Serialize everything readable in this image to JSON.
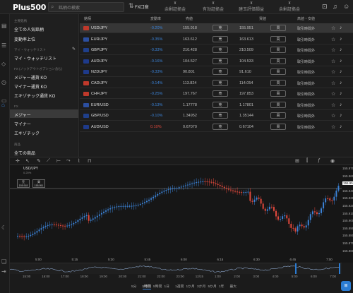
{
  "header": {
    "logo": "Plus500",
    "search_placeholder": "銘柄の検索",
    "account_label": "FX口座",
    "stats": [
      {
        "label": "余剰証拠金",
        "value": "¥"
      },
      {
        "label": "有効証拠金",
        "value": "¥"
      },
      {
        "label": "建玉評価損益",
        "value": "¥"
      },
      {
        "label": "余剰証拠金",
        "value": "¥"
      }
    ]
  },
  "sidebar": {
    "head1": "主要銘柄",
    "item_all_popular": "全ての人気銘柄",
    "item_top_movers": "変動率上位",
    "head2": "マイ・ウォッチリスト",
    "item_watchlist": "マイ・ウォッチリスト",
    "head3": "FX (ノックアウトオプション含む)",
    "item_major_ko": "メジャー通貨 KO",
    "item_minor_ko": "マイナー通貨 KO",
    "item_exotic_ko": "エキゾチック通貨 KO",
    "head4": "FX",
    "item_major": "メジャー",
    "item_minor": "マイナー",
    "item_exotic": "エキゾチック",
    "head5": "商品",
    "item_all_products": "全ての商品"
  },
  "table": {
    "headers": {
      "symbol": "銘柄",
      "change": "変動率",
      "sell": "売値",
      "buy": "買値",
      "status": "高値・安値"
    },
    "sell_label": "売",
    "buy_label": "買",
    "rows": [
      {
        "symbol": "USD/JPY",
        "change": "-0.20%",
        "sell": "155.918",
        "buy": "155.951",
        "status": "取引時間外",
        "neg": false,
        "flag": "#c0392b"
      },
      {
        "symbol": "EUR/JPY",
        "change": "-0.35%",
        "sell": "163.612",
        "buy": "163.613",
        "status": "取引時間外",
        "neg": false,
        "flag": "#2c4fa0"
      },
      {
        "symbol": "GBP/JPY",
        "change": "-0.33%",
        "sell": "210.428",
        "buy": "210.509",
        "status": "取引時間外",
        "neg": false,
        "flag": "#1f3f8a"
      },
      {
        "symbol": "AUD/JPY",
        "change": "-0.16%",
        "sell": "104.527",
        "buy": "104.533",
        "status": "取引時間外",
        "neg": false,
        "flag": "#1e3a8a"
      },
      {
        "symbol": "NZD/JPY",
        "change": "-0.33%",
        "sell": "90.801",
        "buy": "91.610",
        "status": "取引時間外",
        "neg": false,
        "flag": "#1e3a8a"
      },
      {
        "symbol": "CAD/JPY",
        "change": "-0.14%",
        "sell": "113.824",
        "buy": "114.054",
        "status": "取引時間外",
        "neg": false,
        "flag": "#c0392b"
      },
      {
        "symbol": "CHF/JPY",
        "change": "-0.25%",
        "sell": "197.767",
        "buy": "197.853",
        "status": "取引時間外",
        "neg": false,
        "flag": "#c0392b"
      },
      {
        "symbol": "EUR/USD",
        "change": "-0.13%",
        "sell": "1.17778",
        "buy": "1.17801",
        "status": "取引時間外",
        "neg": false,
        "flag": "#2c4fa0"
      },
      {
        "symbol": "GBP/USD",
        "change": "-0.10%",
        "sell": "1.34952",
        "buy": "1.35144",
        "status": "取引時間外",
        "neg": false,
        "flag": "#1f3f8a"
      },
      {
        "symbol": "AUD/USD",
        "change": "0.10%",
        "sell": "0.67070",
        "buy": "0.67104",
        "status": "取引時間外",
        "neg": true,
        "flag": "#1e3a8a"
      }
    ]
  },
  "chart": {
    "symbol": "USD/JPY",
    "sub": "0.20%",
    "sell_box": "売\n155.918",
    "buy_box": "買\n155.951",
    "y_ticks": [
      "155.970",
      "155.960",
      "155.951",
      "155.940",
      "155.930",
      "155.920",
      "155.910",
      "155.900",
      "155.890",
      "155.880",
      "155.870",
      "155.860"
    ],
    "x_ticks": [
      "5:00",
      "5:15",
      "5:30",
      "5:45",
      "6:00",
      "6:15",
      "6:30",
      "6:45",
      "7:00"
    ],
    "nav_ticks": [
      "15:00",
      "16:00",
      "17:00",
      "18:00",
      "19:00",
      "20:00",
      "21:00",
      "22:00",
      "23:00",
      "12/15",
      "1:00",
      "2:00",
      "3:00",
      "4:00",
      "5:00",
      "6:00",
      "7:00"
    ],
    "periods": [
      "5分",
      "1時間",
      "5時間",
      "1日",
      "1週間",
      "1か月",
      "3か月",
      "5か月",
      "1年",
      "最大"
    ],
    "active_period": "1時間"
  },
  "chat_label": "⊞"
}
